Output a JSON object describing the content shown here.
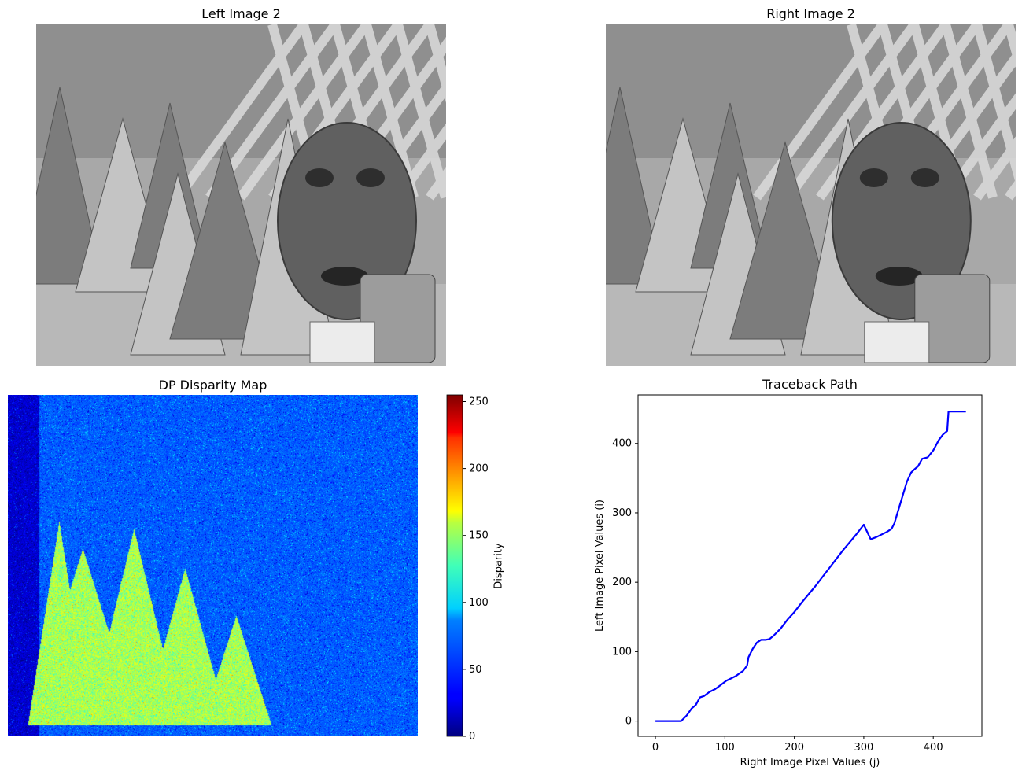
{
  "panels": {
    "left_image": {
      "title": "Left Image 2"
    },
    "right_image": {
      "title": "Right Image 2"
    },
    "disparity": {
      "title": "DP Disparity Map",
      "colorbar_label": "Disparity",
      "colorbar_ticks": [
        "0",
        "50",
        "100",
        "150",
        "200",
        "250"
      ]
    }
  },
  "chart_data": [
    {
      "type": "image",
      "title": "Left Image 2",
      "colormap": "gray"
    },
    {
      "type": "image",
      "title": "Right Image 2",
      "colormap": "gray"
    },
    {
      "type": "heatmap",
      "title": "DP Disparity Map",
      "colormap": "jet",
      "colorbar_label": "Disparity",
      "clim": [
        0,
        255
      ],
      "colorbar_ticks": [
        0,
        50,
        100,
        150,
        200,
        250
      ]
    },
    {
      "type": "line",
      "title": "Traceback Path",
      "xlabel": "Right Image Pixel Values (j)",
      "ylabel": "Left Image Pixel Values (i)",
      "xlim": [
        -25,
        470
      ],
      "ylim": [
        -22,
        470
      ],
      "xticks": [
        0,
        100,
        200,
        300,
        400
      ],
      "yticks": [
        0,
        100,
        200,
        300,
        400
      ],
      "grid": false,
      "color": "#0000ff",
      "series": [
        {
          "x": [
            0,
            37,
            45,
            52,
            58,
            64,
            70,
            78,
            86,
            94,
            102,
            110,
            116,
            120,
            126,
            132,
            134,
            140,
            146,
            152,
            158,
            164,
            170,
            180,
            190,
            200,
            210,
            220,
            230,
            240,
            250,
            260,
            270,
            280,
            290,
            300,
            310,
            318,
            326,
            334,
            340,
            344,
            350,
            356,
            362,
            368,
            372,
            378,
            384,
            392,
            400,
            408,
            414,
            420,
            422,
            430,
            440,
            447
          ],
          "y": [
            0,
            0,
            8,
            18,
            23,
            34,
            36,
            42,
            46,
            52,
            58,
            62,
            65,
            68,
            72,
            80,
            92,
            104,
            113,
            117,
            117,
            118,
            123,
            133,
            146,
            157,
            170,
            182,
            194,
            207,
            220,
            233,
            246,
            258,
            270,
            283,
            262,
            265,
            269,
            273,
            277,
            285,
            305,
            325,
            345,
            358,
            362,
            367,
            378,
            380,
            390,
            405,
            413,
            418,
            446,
            446,
            446,
            446
          ]
        }
      ]
    }
  ]
}
